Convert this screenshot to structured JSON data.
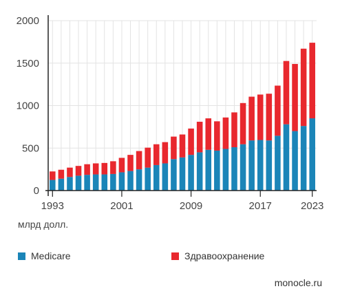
{
  "chart_data": {
    "type": "bar",
    "stacked": true,
    "x": [
      1993,
      1994,
      1995,
      1996,
      1997,
      1998,
      1999,
      2000,
      2001,
      2002,
      2003,
      2004,
      2005,
      2006,
      2007,
      2008,
      2009,
      2010,
      2011,
      2012,
      2013,
      2014,
      2015,
      2016,
      2017,
      2018,
      2019,
      2020,
      2021,
      2022,
      2023
    ],
    "x_tick_labels": [
      "1993",
      "2001",
      "2009",
      "2017",
      "2023"
    ],
    "y_ticks": [
      0,
      500,
      1000,
      1500,
      2000
    ],
    "ylim": [
      0,
      2000
    ],
    "unit_label": "млрд долл.",
    "grid": true,
    "series": [
      {
        "name": "Medicare",
        "color": "#1b85b8",
        "values": [
          125,
          140,
          160,
          175,
          185,
          190,
          190,
          195,
          215,
          230,
          250,
          270,
          300,
          320,
          370,
          390,
          420,
          450,
          480,
          470,
          490,
          510,
          545,
          590,
          595,
          590,
          645,
          780,
          700,
          760,
          850
        ]
      },
      {
        "name": "Здравоохранение",
        "color": "#e8282e",
        "values": [
          100,
          105,
          110,
          115,
          125,
          130,
          135,
          150,
          170,
          190,
          215,
          235,
          245,
          250,
          265,
          270,
          310,
          360,
          370,
          345,
          370,
          410,
          485,
          515,
          535,
          550,
          590,
          745,
          790,
          910,
          890
        ]
      }
    ],
    "legend_position": "bottom"
  },
  "source": "monocle.ru"
}
